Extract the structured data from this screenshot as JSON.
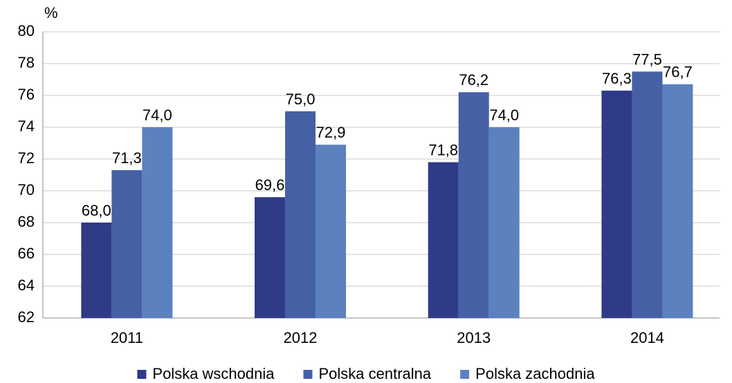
{
  "chart_data": {
    "type": "bar",
    "y_label": "%",
    "categories": [
      "2011",
      "2012",
      "2013",
      "2014"
    ],
    "series": [
      {
        "name": "Polska wschodnia",
        "color": "#2f3b87",
        "values": [
          68.0,
          69.6,
          71.8,
          76.3
        ],
        "value_labels": [
          "68,0",
          "69,6",
          "71,8",
          "76,3"
        ]
      },
      {
        "name": "Polska centralna",
        "color": "#4560a5",
        "values": [
          71.3,
          75.0,
          76.2,
          77.5
        ],
        "value_labels": [
          "71,3",
          "75,0",
          "76,2",
          "77,5"
        ]
      },
      {
        "name": "Polska zachodnia",
        "color": "#5b81bf",
        "values": [
          74.0,
          72.9,
          74.0,
          76.7
        ],
        "value_labels": [
          "74,0",
          "72,9",
          "74,0",
          "76,7"
        ]
      }
    ],
    "ylim": [
      62,
      80
    ],
    "yticks": [
      62,
      64,
      66,
      68,
      70,
      72,
      74,
      76,
      78,
      80
    ],
    "grid": true,
    "legend": "bottom"
  }
}
